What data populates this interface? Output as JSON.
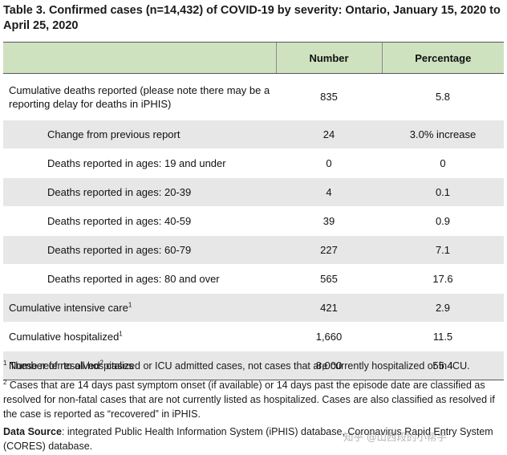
{
  "title": "Table 3. Confirmed cases (n=14,432) of COVID-19 by severity: Ontario, January 15, 2020 to April 25, 2020",
  "headers": {
    "col1": "",
    "col2": "Number",
    "col3": "Percentage"
  },
  "rows": [
    {
      "label": "Cumulative deaths reported (please note there may be a reporting delay for deaths in iPHIS)",
      "sup": "",
      "label_after": "",
      "number": "835",
      "percentage": "5.8"
    },
    {
      "label": "Change from previous report",
      "sup": "",
      "label_after": "",
      "number": "24",
      "percentage": "3.0% increase"
    },
    {
      "label": "Deaths reported in ages: 19 and under",
      "sup": "",
      "label_after": "",
      "number": "0",
      "percentage": "0"
    },
    {
      "label": "Deaths reported in ages: 20-39",
      "sup": "",
      "label_after": "",
      "number": "4",
      "percentage": "0.1"
    },
    {
      "label": "Deaths reported in ages: 40-59",
      "sup": "",
      "label_after": "",
      "number": "39",
      "percentage": "0.9"
    },
    {
      "label": "Deaths reported in ages: 60-79",
      "sup": "",
      "label_after": "",
      "number": "227",
      "percentage": "7.1"
    },
    {
      "label": "Deaths reported in ages: 80 and over",
      "sup": "",
      "label_after": "",
      "number": "565",
      "percentage": "17.6"
    },
    {
      "label": "Cumulative intensive care",
      "sup": "1",
      "label_after": "",
      "number": "421",
      "percentage": "2.9"
    },
    {
      "label": "Cumulative hospitalized",
      "sup": "1",
      "label_after": "",
      "number": "1,660",
      "percentage": "11.5"
    },
    {
      "label": "Number of resolved",
      "sup": "2",
      "label_after": " cases",
      "number": "8,000",
      "percentage": "55.4"
    }
  ],
  "footnotes": [
    {
      "mark": "1",
      "text": " These refer to all hospitalized or ICU admitted cases, not cases that are currently hospitalized or in ICU."
    },
    {
      "mark": "2",
      "text": " Cases that are 14 days past symptom onset (if available) or 14 days past the episode date are classified as resolved for non-fatal cases that are not currently listed as hospitalized. Cases are also classified as resolved if the case is reported as “recovered” in iPHIS."
    }
  ],
  "source": {
    "label": "Data Source",
    "text": ": integrated Public Health Information System (iPHIS) database, Coronavirus Rapid Entry System (CORES) database."
  },
  "watermark": "知乎 @山西段的小帮手"
}
